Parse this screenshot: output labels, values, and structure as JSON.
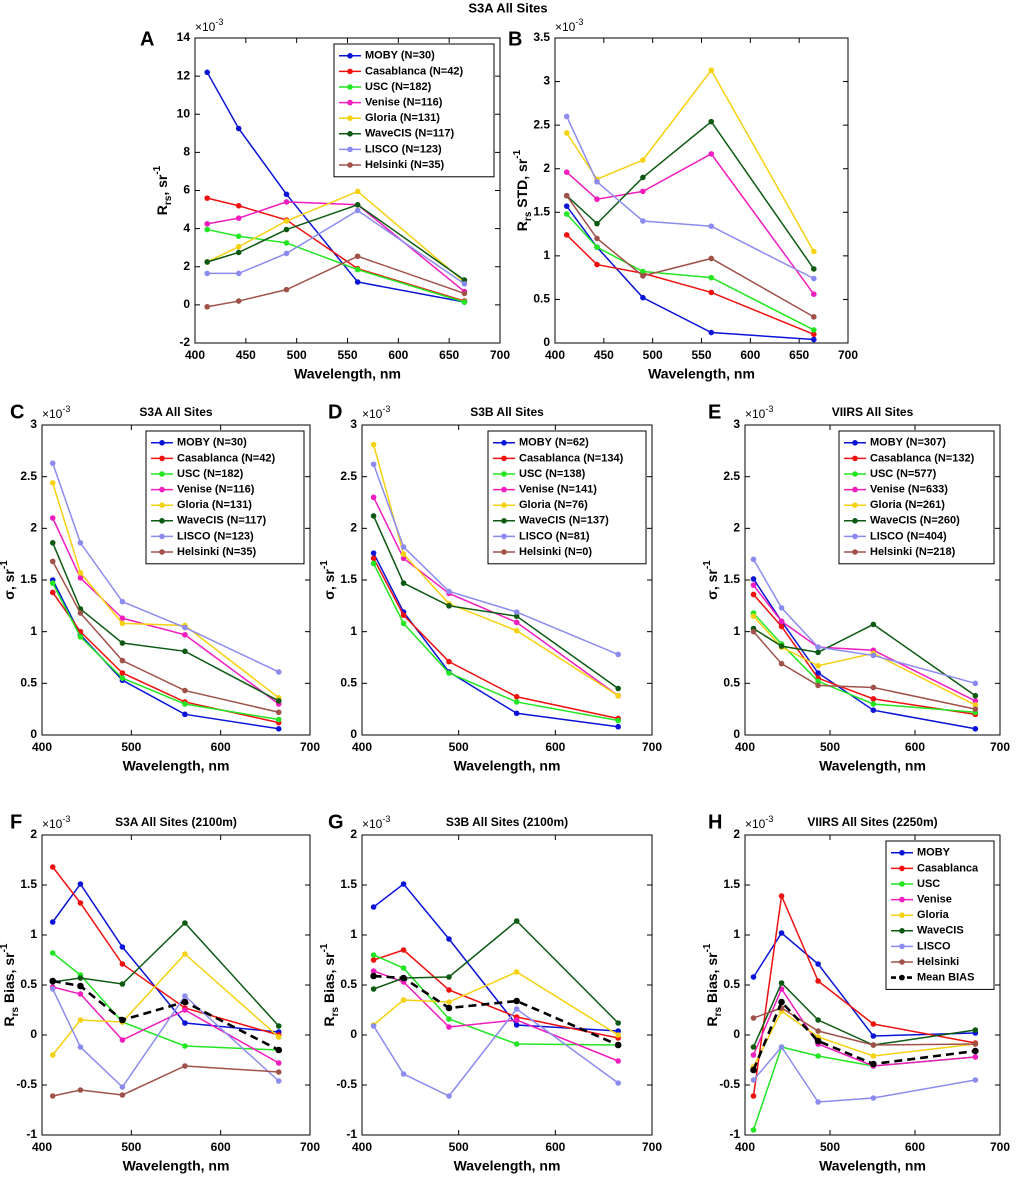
{
  "title": "S3A All Sites",
  "chart_data": [
    {
      "type": "line",
      "letter": "A",
      "y_multiplier": {
        "base": "×10",
        "exp": "-3"
      },
      "xlabel": "Wavelength, nm",
      "ylabel": [
        {
          "text": "R"
        },
        {
          "text": "rs",
          "style": "sub"
        },
        {
          "text": ", sr"
        },
        {
          "text": "-1",
          "style": "sup"
        }
      ],
      "x": [
        412,
        443,
        490,
        560,
        665
      ],
      "xlim": [
        400,
        700
      ],
      "xticks": [
        400,
        450,
        500,
        550,
        600,
        650,
        700
      ],
      "ylim": [
        -2,
        14
      ],
      "yticks": [
        -2,
        0,
        2,
        4,
        6,
        8,
        10,
        12,
        14
      ],
      "legend": "upper right",
      "series": [
        {
          "name": "MOBY (N=30)",
          "color": "#0a14d8",
          "values": [
            12.2,
            9.25,
            5.8,
            1.2,
            0.15
          ]
        },
        {
          "name": "Casablanca (N=42)",
          "color": "#f01010",
          "values": [
            5.6,
            5.2,
            4.45,
            1.9,
            0.2
          ]
        },
        {
          "name": "USC (N=182)",
          "color": "#22e622",
          "values": [
            3.95,
            3.6,
            3.25,
            1.85,
            0.15
          ]
        },
        {
          "name": "Venise (N=116)",
          "color": "#f21cbf",
          "values": [
            4.25,
            4.55,
            5.4,
            5.25,
            0.7
          ]
        },
        {
          "name": "Gloria (N=131)",
          "color": "#f6d10f",
          "values": [
            2.25,
            3.05,
            4.4,
            5.95,
            1.2
          ]
        },
        {
          "name": "WaveCIS (N=117)",
          "color": "#0c5a12",
          "values": [
            2.25,
            2.75,
            3.95,
            5.25,
            1.3
          ]
        },
        {
          "name": "LISCO (N=123)",
          "color": "#8c8cf0",
          "values": [
            1.65,
            1.65,
            2.7,
            4.95,
            1.1
          ]
        },
        {
          "name": "Helsinki (N=35)",
          "color": "#a0524a",
          "values": [
            -0.1,
            0.2,
            0.8,
            2.55,
            0.6
          ]
        }
      ]
    },
    {
      "type": "line",
      "letter": "B",
      "y_multiplier": {
        "base": "×10",
        "exp": "-3"
      },
      "xlabel": "Wavelength, nm",
      "ylabel": [
        {
          "text": "R"
        },
        {
          "text": "rs",
          "style": "sub"
        },
        {
          "text": " STD, sr"
        },
        {
          "text": "-1",
          "style": "sup"
        }
      ],
      "x": [
        412,
        443,
        490,
        560,
        665
      ],
      "xlim": [
        400,
        700
      ],
      "xticks": [
        400,
        450,
        500,
        550,
        600,
        650,
        700
      ],
      "ylim": [
        0,
        3.5
      ],
      "yticks": [
        0,
        0.5,
        1,
        1.5,
        2,
        2.5,
        3,
        3.5
      ],
      "series": [
        {
          "color": "#0a14d8",
          "values": [
            1.57,
            1.1,
            0.52,
            0.12,
            0.04
          ]
        },
        {
          "color": "#f01010",
          "values": [
            1.24,
            0.9,
            0.8,
            0.58,
            0.1
          ]
        },
        {
          "color": "#22e622",
          "values": [
            1.48,
            1.1,
            0.82,
            0.75,
            0.15
          ]
        },
        {
          "color": "#f21cbf",
          "values": [
            1.96,
            1.65,
            1.74,
            2.17,
            0.56
          ]
        },
        {
          "color": "#f6d10f",
          "values": [
            2.41,
            1.88,
            2.1,
            3.13,
            1.05
          ]
        },
        {
          "color": "#0c5a12",
          "values": [
            1.69,
            1.37,
            1.9,
            2.54,
            0.85
          ]
        },
        {
          "color": "#8c8cf0",
          "values": [
            2.6,
            1.85,
            1.4,
            1.34,
            0.74
          ]
        },
        {
          "color": "#a0524a",
          "values": [
            1.69,
            1.2,
            0.77,
            0.97,
            0.3
          ]
        }
      ]
    },
    {
      "type": "line",
      "letter": "C",
      "title": "S3A All Sites",
      "y_multiplier": {
        "base": "×10",
        "exp": "-3"
      },
      "xlabel": "Wavelength, nm",
      "ylabel": [
        {
          "text": "σ, sr"
        },
        {
          "text": "-1",
          "style": "sup"
        }
      ],
      "x": [
        412,
        443,
        490,
        560,
        665
      ],
      "xlim": [
        400,
        700
      ],
      "xticks": [
        400,
        500,
        600,
        700
      ],
      "ylim": [
        0,
        3
      ],
      "yticks": [
        0,
        0.5,
        1,
        1.5,
        2,
        2.5,
        3
      ],
      "legend": "upper right",
      "series": [
        {
          "name": "MOBY (N=30)",
          "color": "#0a14d8",
          "values": [
            1.5,
            0.97,
            0.53,
            0.2,
            0.06
          ]
        },
        {
          "name": "Casablanca (N=42)",
          "color": "#f01010",
          "values": [
            1.38,
            1.0,
            0.6,
            0.32,
            0.12
          ]
        },
        {
          "name": "USC (N=182)",
          "color": "#22e622",
          "values": [
            1.47,
            0.95,
            0.55,
            0.3,
            0.15
          ]
        },
        {
          "name": "Venise (N=116)",
          "color": "#f21cbf",
          "values": [
            2.1,
            1.52,
            1.13,
            0.97,
            0.3
          ]
        },
        {
          "name": "Gloria (N=131)",
          "color": "#f6d10f",
          "values": [
            2.44,
            1.57,
            1.08,
            1.06,
            0.36
          ]
        },
        {
          "name": "WaveCIS (N=117)",
          "color": "#0c5a12",
          "values": [
            1.86,
            1.22,
            0.89,
            0.81,
            0.33
          ]
        },
        {
          "name": "LISCO (N=123)",
          "color": "#8c8cf0",
          "values": [
            2.63,
            1.86,
            1.29,
            1.04,
            0.61
          ]
        },
        {
          "name": "Helsinki (N=35)",
          "color": "#a0524a",
          "values": [
            1.68,
            1.18,
            0.72,
            0.43,
            0.22
          ]
        }
      ]
    },
    {
      "type": "line",
      "letter": "D",
      "title": "S3B All Sites",
      "y_multiplier": {
        "base": "×10",
        "exp": "-3"
      },
      "xlabel": "Wavelength, nm",
      "ylabel": [
        {
          "text": "σ, sr"
        },
        {
          "text": "-1",
          "style": "sup"
        }
      ],
      "x": [
        412,
        443,
        490,
        560,
        665
      ],
      "xlim": [
        400,
        700
      ],
      "xticks": [
        400,
        500,
        600,
        700
      ],
      "ylim": [
        0,
        3
      ],
      "yticks": [
        0,
        0.5,
        1,
        1.5,
        2,
        2.5,
        3
      ],
      "legend": "upper right",
      "series": [
        {
          "name": "MOBY (N=62)",
          "color": "#0a14d8",
          "values": [
            1.76,
            1.19,
            0.61,
            0.21,
            0.08
          ]
        },
        {
          "name": "Casablanca (N=134)",
          "color": "#f01010",
          "values": [
            1.71,
            1.16,
            0.71,
            0.37,
            0.16
          ]
        },
        {
          "name": "USC (N=138)",
          "color": "#22e622",
          "values": [
            1.66,
            1.08,
            0.6,
            0.32,
            0.14
          ]
        },
        {
          "name": "Venise (N=141)",
          "color": "#f21cbf",
          "values": [
            2.3,
            1.71,
            1.37,
            1.09,
            0.38
          ]
        },
        {
          "name": "Gloria (N=76)",
          "color": "#f6d10f",
          "values": [
            2.81,
            1.75,
            1.27,
            1.01,
            0.38
          ]
        },
        {
          "name": "WaveCIS (N=137)",
          "color": "#0c5a12",
          "values": [
            2.12,
            1.47,
            1.25,
            1.15,
            0.45
          ]
        },
        {
          "name": "LISCO (N=81)",
          "color": "#8c8cf0",
          "values": [
            2.62,
            1.82,
            1.39,
            1.19,
            0.78
          ]
        },
        {
          "name": "Helsinki (N=0)",
          "color": "#a0524a",
          "values": [
            null,
            null,
            null,
            null,
            null
          ]
        }
      ]
    },
    {
      "type": "line",
      "letter": "E",
      "title": "VIIRS All Sites",
      "y_multiplier": {
        "base": "×10",
        "exp": "-3"
      },
      "xlabel": "Wavelength, nm",
      "ylabel": [
        {
          "text": "σ, sr"
        },
        {
          "text": "-1",
          "style": "sup"
        }
      ],
      "x": [
        410,
        443,
        486,
        551,
        671
      ],
      "xlim": [
        400,
        700
      ],
      "xticks": [
        400,
        500,
        600,
        700
      ],
      "ylim": [
        0,
        3
      ],
      "yticks": [
        0,
        0.5,
        1,
        1.5,
        2,
        2.5,
        3
      ],
      "legend": "upper right",
      "series": [
        {
          "name": "MOBY (N=307)",
          "color": "#0a14d8",
          "values": [
            1.51,
            1.1,
            0.6,
            0.24,
            0.06
          ]
        },
        {
          "name": "Casablanca (N=132)",
          "color": "#f01010",
          "values": [
            1.36,
            1.05,
            0.55,
            0.35,
            0.2
          ]
        },
        {
          "name": "USC (N=577)",
          "color": "#22e622",
          "values": [
            1.18,
            0.88,
            0.52,
            0.3,
            0.22
          ]
        },
        {
          "name": "Venise (N=633)",
          "color": "#f21cbf",
          "values": [
            1.45,
            1.1,
            0.85,
            0.82,
            0.33
          ]
        },
        {
          "name": "Gloria (N=261)",
          "color": "#f6d10f",
          "values": [
            1.15,
            0.85,
            0.67,
            0.79,
            0.29
          ]
        },
        {
          "name": "WaveCIS (N=260)",
          "color": "#0c5a12",
          "values": [
            1.03,
            0.86,
            0.8,
            1.07,
            0.38
          ]
        },
        {
          "name": "LISCO (N=404)",
          "color": "#8c8cf0",
          "values": [
            1.7,
            1.23,
            0.85,
            0.77,
            0.5
          ]
        },
        {
          "name": "Helsinki (N=218)",
          "color": "#a0524a",
          "values": [
            1.0,
            0.69,
            0.48,
            0.46,
            0.25
          ]
        }
      ]
    },
    {
      "type": "line",
      "letter": "F",
      "title": "S3A All Sites (2100m)",
      "y_multiplier": {
        "base": "×10",
        "exp": "-3"
      },
      "xlabel": "Wavelength, nm",
      "ylabel": [
        {
          "text": "R"
        },
        {
          "text": "rs",
          "style": "sub"
        },
        {
          "text": " Bias, sr"
        },
        {
          "text": "-1",
          "style": "sup"
        }
      ],
      "x": [
        412,
        443,
        490,
        560,
        665
      ],
      "xlim": [
        400,
        700
      ],
      "xticks": [
        400,
        500,
        600,
        700
      ],
      "ylim": [
        -1,
        2
      ],
      "yticks": [
        -1,
        -0.5,
        0,
        0.5,
        1,
        1.5,
        2
      ],
      "series": [
        {
          "color": "#0a14d8",
          "values": [
            1.13,
            1.51,
            0.88,
            0.12,
            0.03
          ]
        },
        {
          "color": "#f01010",
          "values": [
            1.68,
            1.32,
            0.71,
            0.27,
            0.0
          ]
        },
        {
          "color": "#22e622",
          "values": [
            0.82,
            0.6,
            0.13,
            -0.11,
            -0.15
          ]
        },
        {
          "color": "#f21cbf",
          "values": [
            0.48,
            0.41,
            -0.05,
            0.25,
            -0.28
          ]
        },
        {
          "color": "#f6d10f",
          "values": [
            -0.2,
            0.15,
            0.13,
            0.81,
            -0.02
          ]
        },
        {
          "color": "#0c5a12",
          "values": [
            0.53,
            0.57,
            0.51,
            1.12,
            0.09
          ]
        },
        {
          "color": "#8c8cf0",
          "values": [
            0.46,
            -0.12,
            -0.52,
            0.39,
            -0.46
          ]
        },
        {
          "color": "#a0524a",
          "values": [
            -0.61,
            -0.55,
            -0.6,
            -0.31,
            -0.37
          ]
        },
        {
          "color": "#000000",
          "dashed": true,
          "values": [
            0.54,
            0.49,
            0.15,
            0.33,
            -0.15
          ]
        }
      ]
    },
    {
      "type": "line",
      "letter": "G",
      "title": "S3B All Sites (2100m)",
      "y_multiplier": {
        "base": "×10",
        "exp": "-3"
      },
      "xlabel": "Wavelength, nm",
      "ylabel": [
        {
          "text": "R"
        },
        {
          "text": "rs",
          "style": "sub"
        },
        {
          "text": " Bias, sr"
        },
        {
          "text": "-1",
          "style": "sup"
        }
      ],
      "x": [
        412,
        443,
        490,
        560,
        665
      ],
      "xlim": [
        400,
        700
      ],
      "xticks": [
        400,
        500,
        600,
        700
      ],
      "ylim": [
        -1,
        2
      ],
      "yticks": [
        -1,
        -0.5,
        0,
        0.5,
        1,
        1.5,
        2
      ],
      "series": [
        {
          "color": "#0a14d8",
          "values": [
            1.28,
            1.51,
            0.96,
            0.1,
            0.04
          ]
        },
        {
          "color": "#f01010",
          "values": [
            0.75,
            0.85,
            0.45,
            0.18,
            -0.03
          ]
        },
        {
          "color": "#22e622",
          "values": [
            0.8,
            0.67,
            0.16,
            -0.09,
            -0.1
          ]
        },
        {
          "color": "#f21cbf",
          "values": [
            0.64,
            0.53,
            0.08,
            0.15,
            -0.26
          ]
        },
        {
          "color": "#f6d10f",
          "values": [
            0.1,
            0.35,
            0.33,
            0.63,
            0.0
          ]
        },
        {
          "color": "#0c5a12",
          "values": [
            0.46,
            0.57,
            0.58,
            1.14,
            0.12
          ]
        },
        {
          "color": "#8c8cf0",
          "values": [
            0.09,
            -0.39,
            -0.61,
            0.26,
            -0.48
          ]
        },
        {
          "color": "#000000",
          "dashed": true,
          "values": [
            0.59,
            0.57,
            0.27,
            0.34,
            -0.1
          ]
        }
      ]
    },
    {
      "type": "line",
      "letter": "H",
      "title": "VIIRS All Sites (2250m)",
      "y_multiplier": {
        "base": "×10",
        "exp": "-3"
      },
      "xlabel": "Wavelength, nm",
      "ylabel": [
        {
          "text": "R"
        },
        {
          "text": "rs",
          "style": "sub"
        },
        {
          "text": " Bias, sr"
        },
        {
          "text": "-1",
          "style": "sup"
        }
      ],
      "x": [
        410,
        443,
        486,
        551,
        671
      ],
      "xlim": [
        400,
        700
      ],
      "xticks": [
        400,
        500,
        600,
        700
      ],
      "ylim": [
        -1,
        2
      ],
      "yticks": [
        -1,
        -0.5,
        0,
        0.5,
        1,
        1.5,
        2
      ],
      "legend": "upper right",
      "series": [
        {
          "name": "MOBY",
          "color": "#0a14d8",
          "values": [
            0.58,
            1.02,
            0.71,
            -0.01,
            0.02
          ]
        },
        {
          "name": "Casablanca",
          "color": "#f01010",
          "values": [
            -0.61,
            1.39,
            0.54,
            0.11,
            -0.08
          ]
        },
        {
          "name": "USC",
          "color": "#22e622",
          "values": [
            -0.95,
            -0.12,
            -0.21,
            -0.31,
            -0.22
          ]
        },
        {
          "name": "Venise",
          "color": "#f21cbf",
          "values": [
            -0.2,
            0.46,
            -0.09,
            -0.31,
            -0.22
          ]
        },
        {
          "name": "Gloria",
          "color": "#f6d10f",
          "values": [
            -0.32,
            0.24,
            -0.02,
            -0.21,
            -0.09
          ]
        },
        {
          "name": "WaveCIS",
          "color": "#0c5a12",
          "values": [
            -0.12,
            0.52,
            0.15,
            -0.1,
            0.05
          ]
        },
        {
          "name": "LISCO",
          "color": "#8c8cf0",
          "values": [
            -0.45,
            -0.12,
            -0.67,
            -0.63,
            -0.45
          ]
        },
        {
          "name": "Helsinki",
          "color": "#a0524a",
          "values": [
            0.17,
            0.27,
            0.04,
            -0.1,
            -0.09
          ]
        },
        {
          "name": "Mean BIAS",
          "color": "#000000",
          "dashed": true,
          "values": [
            -0.35,
            0.33,
            -0.06,
            -0.29,
            -0.16
          ]
        }
      ]
    }
  ]
}
